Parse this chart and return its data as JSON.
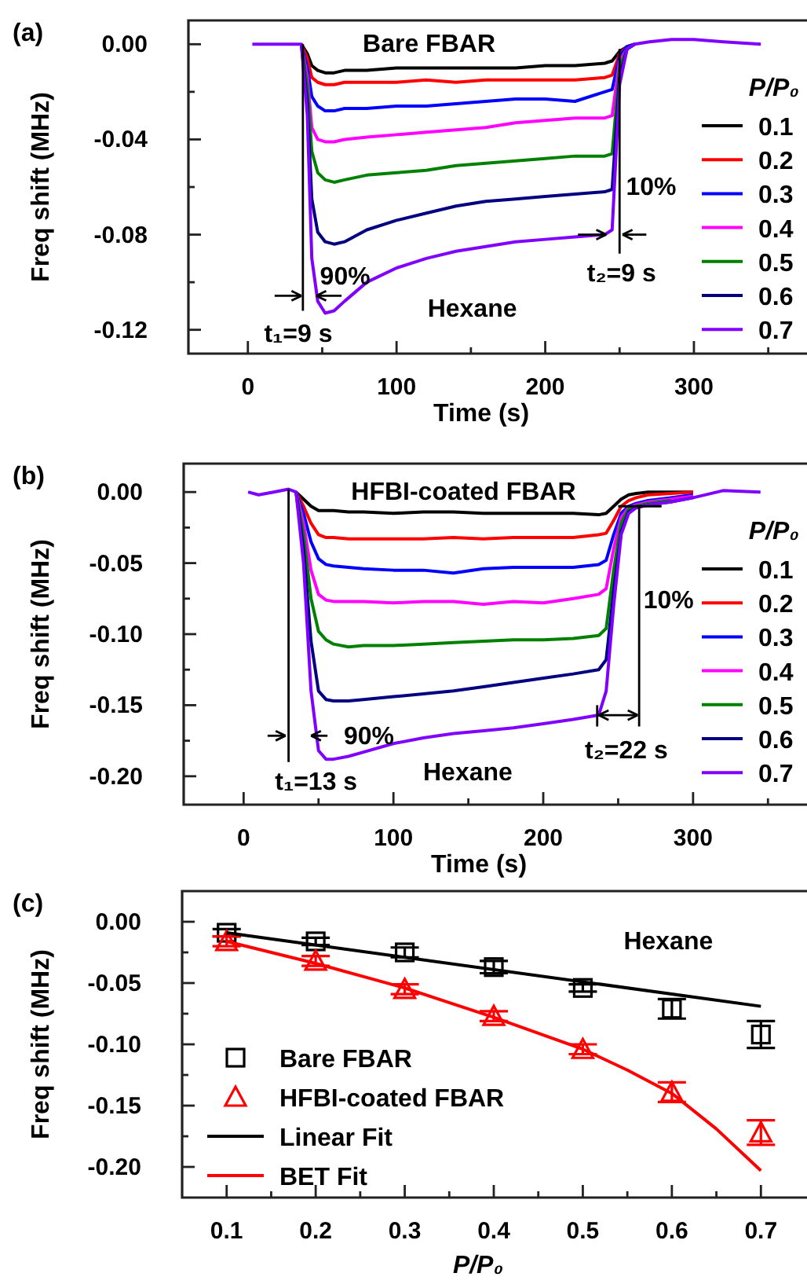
{
  "chart_data": [
    {
      "type": "line",
      "title": "(a)",
      "subtitle": "Bare FBAR",
      "xlabel": "Time (s)",
      "ylabel": "Freq shift (MHz)",
      "legend_title": "P/P₀",
      "legend": "right",
      "xlim": [
        -40,
        375
      ],
      "xticks": [
        0,
        {
          "value": 50,
          "label": null
        },
        100,
        {
          "value": 150,
          "label": null
        },
        200,
        {
          "value": 250,
          "label": null
        },
        300,
        {
          "value": 350,
          "label": null
        }
      ],
      "ylim": [
        -0.13,
        0.01
      ],
      "yticks": [
        {
          "value": -0.12,
          "label": "-0.12"
        },
        {
          "value": -0.1,
          "label": null
        },
        {
          "value": -0.08,
          "label": "-0.08"
        },
        {
          "value": -0.06,
          "label": null
        },
        {
          "value": -0.04,
          "label": "-0.04"
        },
        {
          "value": -0.02,
          "label": null
        },
        {
          "value": 0,
          "label": "0.00"
        }
      ],
      "x": [
        3,
        10,
        20,
        30,
        36,
        40,
        43,
        47,
        52,
        58,
        65,
        80,
        100,
        120,
        140,
        160,
        180,
        200,
        220,
        240,
        245,
        250,
        255,
        260,
        270,
        285,
        300,
        320,
        345
      ],
      "annotations": [
        "Hexane",
        "90%",
        "10%",
        "t₁=9 s",
        "t₂=9 s"
      ],
      "ref_lines": [
        {
          "axis": "x",
          "value": 37
        },
        {
          "axis": "x",
          "value": 250
        }
      ],
      "series": [
        {
          "name": "0.1",
          "color": "#000000",
          "values": [
            null,
            null,
            null,
            null,
            0,
            -0.004,
            -0.009,
            -0.011,
            -0.012,
            -0.012,
            -0.011,
            -0.011,
            -0.01,
            -0.01,
            -0.01,
            -0.01,
            -0.01,
            -0.009,
            -0.009,
            -0.008,
            -0.007,
            -0.003,
            -0.001,
            0,
            null,
            null,
            null,
            null,
            null
          ]
        },
        {
          "name": "0.2",
          "color": "#ff0000",
          "values": [
            null,
            null,
            null,
            null,
            0,
            -0.006,
            -0.014,
            -0.016,
            -0.017,
            -0.017,
            -0.016,
            -0.016,
            -0.016,
            -0.015,
            -0.016,
            -0.015,
            -0.015,
            -0.015,
            -0.015,
            -0.014,
            -0.013,
            -0.004,
            -0.001,
            0,
            null,
            null,
            null,
            null,
            null
          ]
        },
        {
          "name": "0.3",
          "color": "#0000ff",
          "values": [
            null,
            null,
            null,
            null,
            0,
            -0.01,
            -0.022,
            -0.026,
            -0.028,
            -0.028,
            -0.027,
            -0.027,
            -0.026,
            -0.026,
            -0.025,
            -0.024,
            -0.023,
            -0.023,
            -0.024,
            -0.02,
            -0.019,
            -0.005,
            -0.001,
            0,
            null,
            null,
            null,
            null,
            null
          ]
        },
        {
          "name": "0.4",
          "color": "#ff00ff",
          "values": [
            null,
            null,
            null,
            null,
            0,
            -0.014,
            -0.035,
            -0.04,
            -0.041,
            -0.041,
            -0.04,
            -0.039,
            -0.038,
            -0.037,
            -0.036,
            -0.035,
            -0.033,
            -0.032,
            -0.031,
            -0.031,
            -0.03,
            -0.007,
            -0.002,
            0,
            null,
            null,
            null,
            null,
            null
          ]
        },
        {
          "name": "0.5",
          "color": "#008000",
          "values": [
            null,
            null,
            null,
            null,
            0,
            -0.018,
            -0.045,
            -0.054,
            -0.057,
            -0.058,
            -0.057,
            -0.055,
            -0.054,
            -0.053,
            -0.051,
            -0.05,
            -0.049,
            -0.048,
            -0.047,
            -0.047,
            -0.046,
            -0.01,
            -0.002,
            0,
            null,
            null,
            null,
            null,
            null
          ]
        },
        {
          "name": "0.6",
          "color": "#000080",
          "values": [
            null,
            null,
            null,
            null,
            0,
            -0.025,
            -0.065,
            -0.079,
            -0.083,
            -0.084,
            -0.083,
            -0.078,
            -0.074,
            -0.071,
            -0.068,
            -0.066,
            -0.065,
            -0.064,
            -0.063,
            -0.062,
            -0.061,
            -0.014,
            -0.002,
            0,
            null,
            null,
            null,
            null,
            null
          ]
        },
        {
          "name": "0.7",
          "color": "#8000ff",
          "values": [
            0,
            0,
            0,
            0,
            0,
            -0.03,
            -0.09,
            -0.108,
            -0.113,
            -0.112,
            -0.108,
            -0.1,
            -0.094,
            -0.09,
            -0.087,
            -0.085,
            -0.083,
            -0.082,
            -0.081,
            -0.08,
            -0.078,
            -0.017,
            -0.002,
            0,
            0.001,
            0.002,
            0.002,
            0.001,
            0
          ]
        }
      ]
    },
    {
      "type": "line",
      "title": "(b)",
      "subtitle": "HFBI-coated FBAR",
      "xlabel": "Time (s)",
      "ylabel": "Freq shift (MHz)",
      "legend_title": "P/P₀",
      "legend": "right",
      "xlim": [
        -40,
        375
      ],
      "xticks": [
        0,
        {
          "value": 50,
          "label": null
        },
        100,
        {
          "value": 150,
          "label": null
        },
        200,
        {
          "value": 250,
          "label": null
        },
        300,
        {
          "value": 350,
          "label": null
        }
      ],
      "ylim": [
        -0.22,
        0.02
      ],
      "yticks": [
        {
          "value": -0.2,
          "label": "-0.20"
        },
        {
          "value": -0.175,
          "label": null
        },
        {
          "value": -0.15,
          "label": "-0.15"
        },
        {
          "value": -0.125,
          "label": null
        },
        {
          "value": -0.1,
          "label": "-0.10"
        },
        {
          "value": -0.075,
          "label": null
        },
        {
          "value": -0.05,
          "label": "-0.05"
        },
        {
          "value": -0.025,
          "label": null
        },
        {
          "value": 0,
          "label": "0.00"
        }
      ],
      "x": [
        3,
        10,
        20,
        30,
        35,
        40,
        45,
        50,
        55,
        60,
        70,
        80,
        100,
        120,
        140,
        160,
        180,
        200,
        220,
        237,
        242,
        247,
        252,
        257,
        262,
        270,
        285,
        300,
        320,
        345
      ],
      "annotations": [
        "Hexane",
        "90%",
        "10%",
        "t₁=13 s",
        "t₂=22 s"
      ],
      "ref_lines": [
        {
          "axis": "x",
          "value": 30
        },
        {
          "axis": "x",
          "value": 264
        }
      ],
      "series": [
        {
          "name": "0.1",
          "color": "#000000",
          "values": [
            null,
            null,
            null,
            null,
            0,
            -0.005,
            -0.01,
            -0.013,
            -0.013,
            -0.013,
            -0.014,
            -0.014,
            -0.015,
            -0.014,
            -0.014,
            -0.015,
            -0.015,
            -0.015,
            -0.015,
            -0.016,
            -0.015,
            -0.01,
            -0.005,
            -0.002,
            -0.001,
            0,
            0,
            0,
            null,
            null
          ]
        },
        {
          "name": "0.2",
          "color": "#ff0000",
          "values": [
            null,
            null,
            null,
            null,
            0,
            -0.01,
            -0.022,
            -0.03,
            -0.032,
            -0.032,
            -0.033,
            -0.033,
            -0.033,
            -0.033,
            -0.032,
            -0.033,
            -0.032,
            -0.032,
            -0.032,
            -0.03,
            -0.029,
            -0.02,
            -0.01,
            -0.006,
            -0.004,
            -0.002,
            -0.001,
            0,
            null,
            null
          ]
        },
        {
          "name": "0.3",
          "color": "#0000ff",
          "values": [
            null,
            null,
            null,
            null,
            0,
            -0.015,
            -0.035,
            -0.047,
            -0.051,
            -0.052,
            -0.053,
            -0.054,
            -0.055,
            -0.055,
            -0.057,
            -0.054,
            -0.053,
            -0.053,
            -0.053,
            -0.051,
            -0.048,
            -0.03,
            -0.015,
            -0.01,
            -0.008,
            -0.006,
            -0.004,
            -0.002,
            null,
            null
          ]
        },
        {
          "name": "0.4",
          "color": "#ff00ff",
          "values": [
            null,
            null,
            null,
            null,
            0,
            -0.022,
            -0.055,
            -0.072,
            -0.076,
            -0.077,
            -0.077,
            -0.077,
            -0.078,
            -0.077,
            -0.077,
            -0.079,
            -0.077,
            -0.078,
            -0.075,
            -0.072,
            -0.068,
            -0.04,
            -0.018,
            -0.011,
            -0.009,
            -0.007,
            -0.005,
            -0.003,
            null,
            null
          ]
        },
        {
          "name": "0.5",
          "color": "#008000",
          "values": [
            null,
            null,
            null,
            null,
            0,
            -0.03,
            -0.075,
            -0.098,
            -0.104,
            -0.107,
            -0.109,
            -0.108,
            -0.108,
            -0.107,
            -0.106,
            -0.105,
            -0.104,
            -0.104,
            -0.103,
            -0.101,
            -0.096,
            -0.055,
            -0.022,
            -0.012,
            -0.01,
            -0.008,
            -0.006,
            null,
            null,
            null
          ]
        },
        {
          "name": "0.6",
          "color": "#000080",
          "values": [
            null,
            null,
            null,
            null,
            0,
            -0.04,
            -0.105,
            -0.14,
            -0.146,
            -0.147,
            -0.147,
            -0.146,
            -0.144,
            -0.142,
            -0.14,
            -0.137,
            -0.134,
            -0.131,
            -0.128,
            -0.125,
            -0.118,
            -0.07,
            -0.028,
            -0.014,
            -0.011,
            -0.009,
            -0.007,
            -0.004,
            null,
            null
          ]
        },
        {
          "name": "0.7",
          "color": "#8000ff",
          "values": [
            0,
            -0.002,
            0,
            0.002,
            0,
            -0.05,
            -0.14,
            -0.182,
            -0.188,
            -0.188,
            -0.186,
            -0.183,
            -0.177,
            -0.173,
            -0.17,
            -0.168,
            -0.166,
            -0.163,
            -0.16,
            -0.157,
            -0.14,
            -0.08,
            -0.03,
            -0.015,
            -0.011,
            -0.009,
            -0.007,
            -0.004,
            0.001,
            0
          ]
        }
      ]
    },
    {
      "type": "scatter",
      "title": "(c)",
      "xlabel": "P/P₀",
      "ylabel": "Freq shift (MHz)",
      "legend": "bottom left",
      "xlim": [
        0.05,
        0.75
      ],
      "xticks": [
        0.1,
        {
          "value": 0.15,
          "label": null
        },
        0.2,
        {
          "value": 0.25,
          "label": null
        },
        0.3,
        {
          "value": 0.35,
          "label": null
        },
        0.4,
        {
          "value": 0.45,
          "label": null
        },
        0.5,
        {
          "value": 0.55,
          "label": null
        },
        0.6,
        {
          "value": 0.65,
          "label": null
        },
        0.7
      ],
      "ylim": [
        -0.225,
        0.025
      ],
      "yticks": [
        {
          "value": -0.2,
          "label": "-0.20"
        },
        {
          "value": -0.175,
          "label": null
        },
        {
          "value": -0.15,
          "label": "-0.15"
        },
        {
          "value": -0.125,
          "label": null
        },
        {
          "value": -0.1,
          "label": "-0.10"
        },
        {
          "value": -0.075,
          "label": null
        },
        {
          "value": -0.05,
          "label": "-0.05"
        },
        {
          "value": -0.025,
          "label": null
        },
        {
          "value": 0,
          "label": "0.00"
        }
      ],
      "x": [
        0.1,
        0.2,
        0.3,
        0.4,
        0.5,
        0.6,
        0.7
      ],
      "annotations": [
        "Hexane"
      ],
      "series": [
        {
          "name": "Bare FBAR",
          "marker": "square",
          "color": "#000000",
          "values": [
            -0.009,
            -0.016,
            -0.025,
            -0.037,
            -0.054,
            -0.071,
            -0.092
          ],
          "errors": [
            0.003,
            0.003,
            0.004,
            0.005,
            0.003,
            0.008,
            0.011
          ]
        },
        {
          "name": "HFBI-coated FBAR",
          "marker": "triangle",
          "color": "#ff0000",
          "values": [
            -0.016,
            -0.032,
            -0.055,
            -0.077,
            -0.104,
            -0.139,
            -0.172
          ],
          "errors": [
            0.004,
            0.004,
            0.004,
            0.004,
            0.004,
            0.008,
            0.01
          ]
        },
        {
          "name": "Linear Fit",
          "type": "line",
          "color": "#000000",
          "x": [
            0.1,
            0.7
          ],
          "values": [
            -0.009,
            -0.069
          ]
        },
        {
          "name": "BET Fit",
          "type": "line",
          "color": "#ff0000",
          "x": [
            0.1,
            0.2,
            0.3,
            0.4,
            0.5,
            0.55,
            0.6,
            0.65,
            0.7
          ],
          "values": [
            -0.016,
            -0.034,
            -0.054,
            -0.078,
            -0.104,
            -0.121,
            -0.14,
            -0.169,
            -0.203
          ]
        }
      ]
    }
  ]
}
